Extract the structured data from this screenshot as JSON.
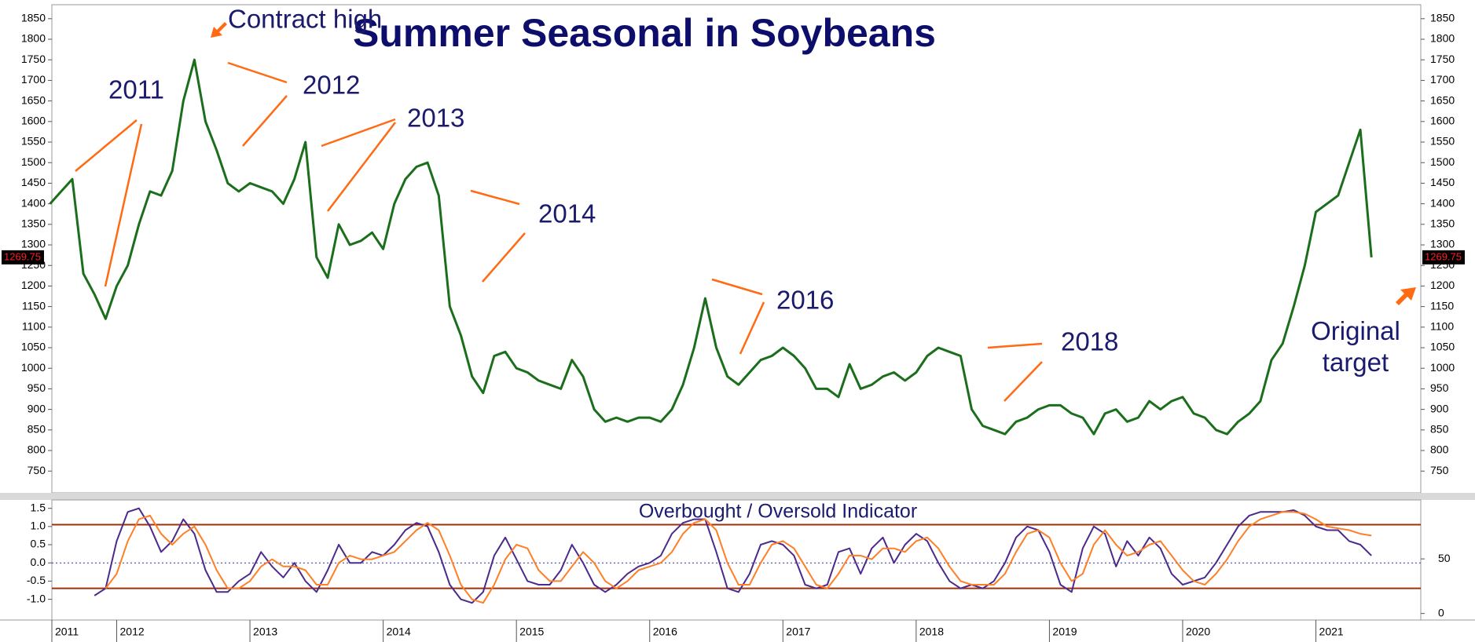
{
  "chart_data": [
    {
      "type": "line",
      "title": "Summer Seasonal in Soybeans",
      "categories": [
        "2011",
        null,
        null,
        null,
        null,
        null,
        "2012",
        null,
        null,
        null,
        null,
        null,
        null,
        null,
        null,
        null,
        null,
        null,
        "2013",
        null,
        null,
        null,
        null,
        null,
        null,
        null,
        null,
        null,
        null,
        null,
        "2014",
        null,
        null,
        null,
        null,
        null,
        null,
        null,
        null,
        null,
        null,
        null,
        "2015",
        null,
        null,
        null,
        null,
        null,
        null,
        null,
        null,
        null,
        null,
        null,
        "2016",
        null,
        null,
        null,
        null,
        null,
        null,
        null,
        null,
        null,
        null,
        null,
        "2017",
        null,
        null,
        null,
        null,
        null,
        null,
        null,
        null,
        null,
        null,
        null,
        "2018",
        null,
        null,
        null,
        null,
        null,
        null,
        null,
        null,
        null,
        null,
        null,
        "2019",
        null,
        null,
        null,
        null,
        null,
        null,
        null,
        null,
        null,
        null,
        null,
        "2020",
        null,
        null,
        null,
        null,
        null,
        null,
        null,
        null,
        null,
        null,
        null,
        "2021",
        null,
        null,
        null,
        null,
        null,
        null,
        null,
        null,
        null
      ],
      "series": [
        {
          "color": "#1b6e1b",
          "values": [
            1400,
            1430,
            1460,
            1230,
            1180,
            1120,
            1200,
            1250,
            1350,
            1430,
            1420,
            1480,
            1650,
            1750,
            1600,
            1530,
            1450,
            1430,
            1450,
            1440,
            1430,
            1400,
            1460,
            1550,
            1270,
            1220,
            1350,
            1300,
            1310,
            1330,
            1290,
            1400,
            1460,
            1490,
            1500,
            1420,
            1150,
            1080,
            980,
            940,
            1030,
            1040,
            1000,
            990,
            970,
            960,
            950,
            1020,
            980,
            900,
            870,
            880,
            870,
            880,
            880,
            870,
            900,
            960,
            1050,
            1170,
            1050,
            980,
            960,
            990,
            1020,
            1030,
            1050,
            1030,
            1000,
            950,
            950,
            930,
            1010,
            950,
            960,
            980,
            990,
            970,
            990,
            1030,
            1050,
            1040,
            1030,
            900,
            860,
            850,
            840,
            870,
            880,
            900,
            910,
            910,
            890,
            880,
            840,
            890,
            900,
            870,
            880,
            920,
            900,
            920,
            930,
            890,
            880,
            850,
            840,
            870,
            890,
            920,
            1020,
            1060,
            1150,
            1250,
            1380,
            1400,
            1420,
            1500,
            1580,
            1269.75,
            null,
            null,
            null,
            null
          ]
        }
      ],
      "ylim": [
        697,
        1884
      ],
      "yticks": [
        750,
        800,
        850,
        900,
        950,
        1000,
        1050,
        1100,
        1150,
        1200,
        1250,
        1300,
        1350,
        1400,
        1450,
        1500,
        1550,
        1600,
        1650,
        1700,
        1750,
        1800,
        1850
      ],
      "annotations": [
        "Contract high",
        "2011",
        "2012",
        "2013",
        "2014",
        "2016",
        "2018",
        "Original target"
      ]
    },
    {
      "type": "line",
      "title": "Overbought / Oversold Indicator",
      "series": [
        {
          "color": "#4b2a8c",
          "values": [
            null,
            null,
            null,
            null,
            -0.9,
            -0.7,
            0.6,
            1.4,
            1.5,
            1.0,
            0.3,
            0.6,
            1.2,
            0.8,
            -0.2,
            -0.8,
            -0.8,
            -0.5,
            -0.3,
            0.3,
            -0.1,
            -0.4,
            0.0,
            -0.5,
            -0.8,
            -0.2,
            0.5,
            0.0,
            0.0,
            0.3,
            0.2,
            0.5,
            0.9,
            1.1,
            1.0,
            0.3,
            -0.6,
            -1.0,
            -1.1,
            -0.8,
            0.2,
            0.7,
            0.1,
            -0.5,
            -0.6,
            -0.6,
            -0.2,
            0.5,
            0.0,
            -0.6,
            -0.8,
            -0.6,
            -0.3,
            -0.1,
            0.0,
            0.2,
            0.8,
            1.1,
            1.2,
            1.2,
            0.3,
            -0.7,
            -0.8,
            -0.3,
            0.5,
            0.6,
            0.5,
            0.2,
            -0.6,
            -0.7,
            -0.6,
            0.3,
            0.4,
            -0.3,
            0.4,
            0.7,
            0.0,
            0.5,
            0.8,
            0.6,
            0.0,
            -0.5,
            -0.7,
            -0.6,
            -0.7,
            -0.5,
            0.0,
            0.7,
            1.0,
            0.9,
            0.3,
            -0.6,
            -0.8,
            0.4,
            1.0,
            0.8,
            -0.1,
            0.6,
            0.2,
            0.7,
            0.4,
            -0.3,
            -0.6,
            -0.5,
            -0.4,
            0.0,
            0.5,
            1.0,
            1.3,
            1.4,
            1.4,
            1.4,
            1.45,
            1.3,
            1.0,
            0.9,
            0.9,
            0.6,
            0.5,
            0.2,
            null,
            null,
            null,
            null
          ]
        },
        {
          "color": "#ff7f27",
          "values": [
            null,
            null,
            null,
            null,
            null,
            -0.7,
            -0.3,
            0.6,
            1.2,
            1.3,
            0.8,
            0.5,
            0.8,
            1.0,
            0.5,
            -0.2,
            -0.7,
            -0.7,
            -0.5,
            -0.1,
            0.1,
            -0.1,
            -0.1,
            -0.2,
            -0.6,
            -0.6,
            0.0,
            0.2,
            0.1,
            0.1,
            0.2,
            0.3,
            0.6,
            0.9,
            1.1,
            0.9,
            0.2,
            -0.6,
            -1.0,
            -1.1,
            -0.6,
            0.1,
            0.5,
            0.4,
            -0.2,
            -0.5,
            -0.5,
            -0.1,
            0.3,
            0.0,
            -0.5,
            -0.7,
            -0.5,
            -0.2,
            -0.1,
            0.0,
            0.3,
            0.8,
            1.1,
            1.2,
            0.9,
            0.0,
            -0.6,
            -0.6,
            0.0,
            0.5,
            0.6,
            0.4,
            -0.1,
            -0.6,
            -0.7,
            -0.3,
            0.2,
            0.2,
            0.1,
            0.4,
            0.4,
            0.3,
            0.6,
            0.7,
            0.4,
            -0.1,
            -0.5,
            -0.6,
            -0.6,
            -0.6,
            -0.3,
            0.3,
            0.8,
            0.9,
            0.7,
            0.0,
            -0.5,
            -0.3,
            0.5,
            0.9,
            0.5,
            0.2,
            0.3,
            0.5,
            0.6,
            0.2,
            -0.2,
            -0.5,
            -0.6,
            -0.3,
            0.1,
            0.6,
            1.0,
            1.2,
            1.3,
            1.4,
            1.4,
            1.35,
            1.2,
            1.0,
            0.95,
            0.9,
            0.8,
            0.75,
            null,
            null,
            null,
            null
          ]
        }
      ],
      "ylim": [
        -1.57,
        1.73
      ],
      "yticks": [
        1.5,
        {
          "value": 1,
          "label": "1.0"
        },
        0.5,
        {
          "value": 0,
          "label": "0.0"
        },
        -0.5,
        {
          "value": -1,
          "label": "-1.0"
        }
      ],
      "y2lim": [
        -6,
        104
      ],
      "y2ticks": [
        50,
        0
      ],
      "levels": [
        1.05,
        -0.7
      ],
      "zero_line": 0
    }
  ]
}
